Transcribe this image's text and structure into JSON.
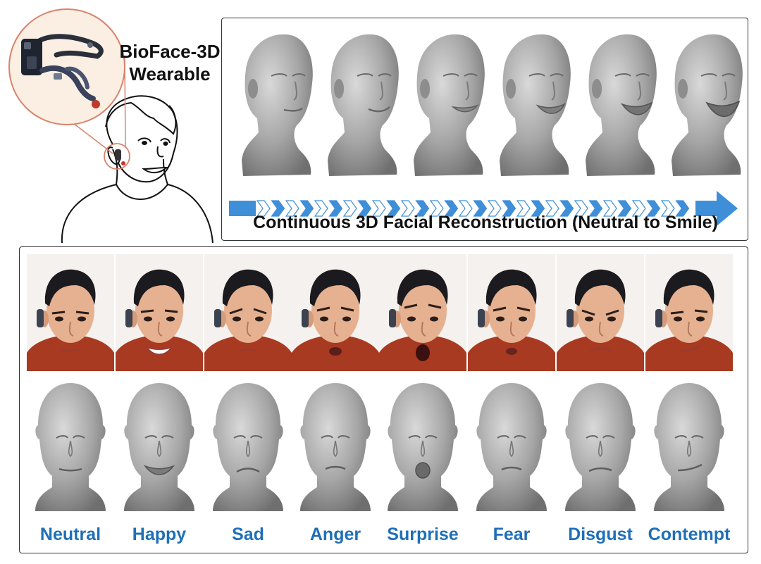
{
  "device": {
    "name_line1": "BioFace-3D",
    "name_line2": "Wearable"
  },
  "reconstruction": {
    "caption": "Continuous 3D Facial Reconstruction (Neutral to Smile)",
    "frames": [
      "neutral",
      "smile-1",
      "smile-2",
      "smile-3",
      "smile-4",
      "smile"
    ]
  },
  "expressions": [
    {
      "label": "Neutral"
    },
    {
      "label": "Happy"
    },
    {
      "label": "Sad"
    },
    {
      "label": "Anger"
    },
    {
      "label": "Surprise"
    },
    {
      "label": "Fear"
    },
    {
      "label": "Disgust"
    },
    {
      "label": "Contempt"
    }
  ],
  "colors": {
    "label_blue": "#1f6fb8",
    "arrow_blue": "#3f8fd8",
    "mesh_gray": "#9c9c9c",
    "sweater_red": "#a83a22",
    "zoom_circle": "#d9826a"
  }
}
